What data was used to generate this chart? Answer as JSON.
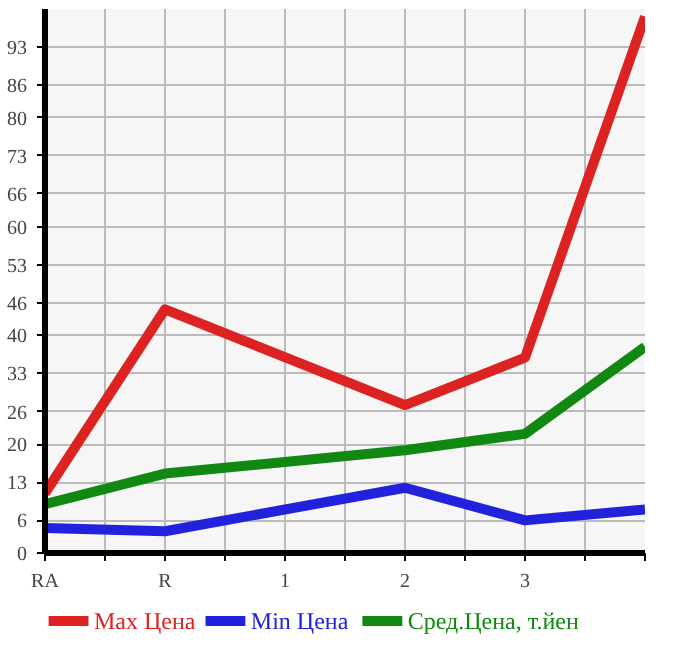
{
  "chart_data": {
    "type": "line",
    "categories": [
      "RA",
      "R",
      "1",
      "2",
      "3",
      null
    ],
    "series": [
      {
        "name": "Max Цена",
        "color": "#dd2222",
        "values": [
          11.0,
          44.8,
          null,
          27.2,
          35.9,
          98.6
        ]
      },
      {
        "name": "Min Цена",
        "color": "#2222dd",
        "values": [
          4.6,
          4.0,
          null,
          12.0,
          6.0,
          8.0
        ]
      },
      {
        "name": "Сред.Цена, т.йен",
        "color": "#118811",
        "values": [
          9.0,
          14.6,
          null,
          18.9,
          21.9,
          37.9
        ]
      }
    ],
    "ylim": [
      0,
      100
    ],
    "yticks": [
      0,
      6,
      13,
      20,
      26,
      33,
      40,
      46,
      53,
      60,
      66,
      73,
      80,
      86,
      93
    ],
    "grid": true,
    "legend": "bottom",
    "marker": "none",
    "line_style": "solid"
  }
}
